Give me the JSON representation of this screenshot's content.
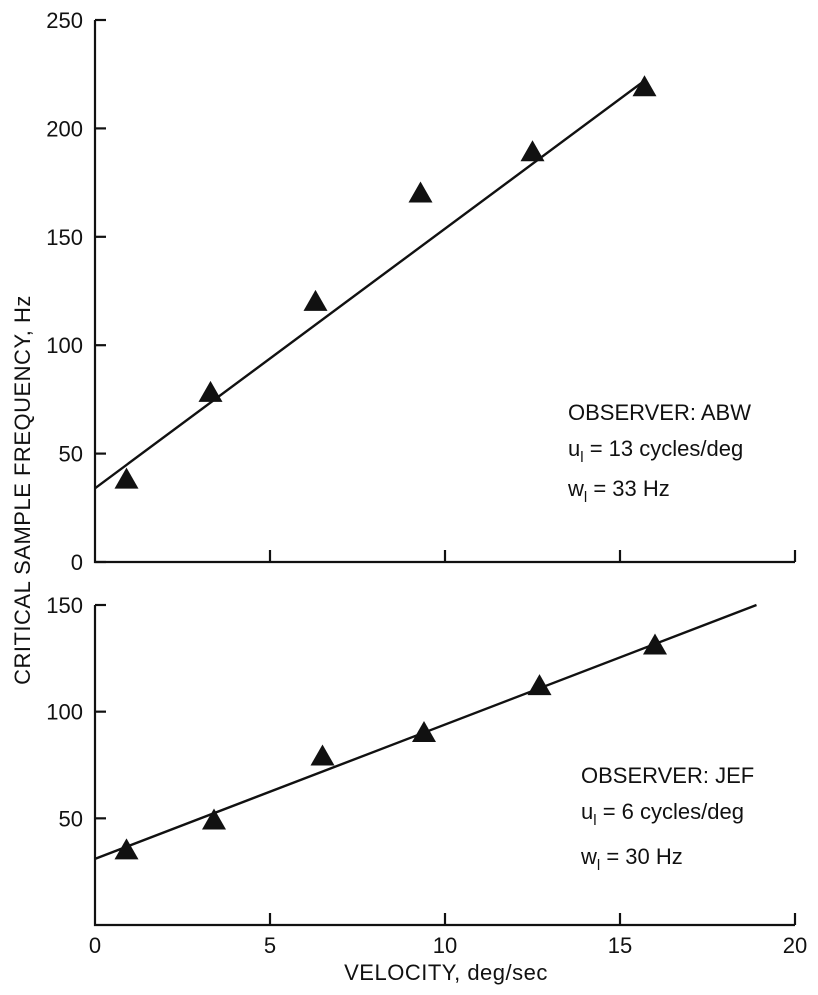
{
  "chart_data": [
    {
      "type": "scatter",
      "panel": "top",
      "series": [
        {
          "x": [
            0.9,
            3.3,
            6.3,
            9.3,
            12.5,
            15.7
          ],
          "y": [
            38,
            78,
            120,
            170,
            189,
            219
          ]
        }
      ],
      "fit_line": {
        "x": [
          0,
          15.7
        ],
        "y": [
          34,
          222
        ]
      },
      "xlim": [
        0,
        20
      ],
      "ylim": [
        0,
        250
      ],
      "yticks": [
        0,
        50,
        100,
        150,
        200,
        250
      ],
      "annotations": [
        {
          "main": "OBSERVER: ABW"
        },
        {
          "lead": "u",
          "sub": "l",
          "rest": " = 13 cycles/deg"
        },
        {
          "lead": "w",
          "sub": "l",
          "rest": " = 33 Hz"
        }
      ]
    },
    {
      "type": "scatter",
      "panel": "bottom",
      "series": [
        {
          "x": [
            0.9,
            3.4,
            6.5,
            9.4,
            12.7,
            16.0
          ],
          "y": [
            35,
            49,
            79,
            90,
            112,
            131
          ]
        }
      ],
      "fit_line": {
        "x": [
          0,
          18.9
        ],
        "y": [
          31,
          150
        ]
      },
      "xlim": [
        0,
        20
      ],
      "ylim": [
        0,
        150
      ],
      "yticks": [
        50,
        100,
        150
      ],
      "xticks": [
        0,
        5,
        10,
        15,
        20
      ],
      "annotations": [
        {
          "main": "OBSERVER: JEF"
        },
        {
          "lead": "u",
          "sub": "l",
          "rest": " = 6 cycles/deg"
        },
        {
          "lead": "w",
          "sub": "l",
          "rest": " = 30 Hz"
        }
      ]
    }
  ],
  "xlabel": "VELOCITY, deg/sec",
  "ylabel": "CRITICAL SAMPLE FREQUENCY, Hz"
}
